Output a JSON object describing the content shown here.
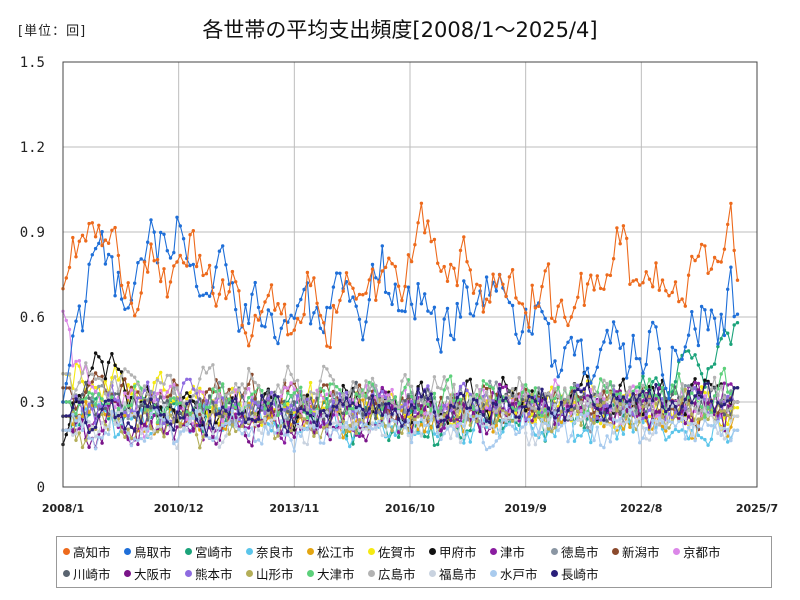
{
  "chart_data": {
    "type": "line",
    "title": "各世帯の平均支出頻度[2008/1～2025/4]",
    "unit_label": "[単位：回]",
    "ylim": [
      0,
      1.5
    ],
    "yticks": [
      0,
      0.3,
      0.6,
      0.9,
      1.2,
      1.5
    ],
    "ytick_labels": [
      "0",
      "0.3",
      "0.6",
      "0.9",
      "1.2",
      "1.5"
    ],
    "xticks": [
      "2008/1",
      "2010/12",
      "2013/11",
      "2016/10",
      "2019/9",
      "2022/8",
      "2025/7"
    ],
    "x_range": [
      "2008/1",
      "2025/7"
    ],
    "n_months": 208,
    "grid": true,
    "legend_position": "bottom",
    "series": [
      {
        "name": "高知市",
        "color": "#ED6A1C",
        "base": 0.75,
        "amp": 0.12,
        "noise": 0.1,
        "anchors": [
          [
            0,
            0.7
          ],
          [
            8,
            1.0
          ],
          [
            20,
            0.75
          ],
          [
            40,
            0.78
          ],
          [
            60,
            0.6
          ],
          [
            80,
            0.62
          ],
          [
            100,
            0.65
          ],
          [
            110,
            0.9
          ],
          [
            130,
            0.7
          ],
          [
            150,
            0.6
          ],
          [
            160,
            0.65
          ],
          [
            170,
            0.85
          ],
          [
            185,
            0.68
          ],
          [
            195,
            0.8
          ],
          [
            205,
            0.94
          ],
          [
            207,
            0.73
          ]
        ]
      },
      {
        "name": "鳥取市",
        "color": "#1F6FD8",
        "base": 0.6,
        "amp": 0.12,
        "noise": 0.13,
        "anchors": [
          [
            0,
            0.3
          ],
          [
            8,
            0.82
          ],
          [
            20,
            0.7
          ],
          [
            28,
            1.02
          ],
          [
            40,
            0.8
          ],
          [
            55,
            0.7
          ],
          [
            70,
            0.6
          ],
          [
            90,
            0.6
          ],
          [
            100,
            0.8
          ],
          [
            120,
            0.55
          ],
          [
            130,
            0.8
          ],
          [
            140,
            0.55
          ],
          [
            150,
            0.45
          ],
          [
            170,
            0.45
          ],
          [
            190,
            0.45
          ],
          [
            200,
            0.55
          ],
          [
            207,
            0.61
          ]
        ]
      },
      {
        "name": "宮崎市",
        "color": "#1BA37A",
        "base": 0.27,
        "amp": 0.07,
        "noise": 0.06,
        "anchors": [
          [
            0,
            0.25
          ],
          [
            60,
            0.25
          ],
          [
            120,
            0.2
          ],
          [
            170,
            0.28
          ],
          [
            207,
            0.58
          ]
        ]
      },
      {
        "name": "奈良市",
        "color": "#5BC5EA",
        "base": 0.22,
        "amp": 0.06,
        "noise": 0.06,
        "anchors": [
          [
            0,
            0.25
          ],
          [
            207,
            0.2
          ]
        ]
      },
      {
        "name": "松江市",
        "color": "#E3A511",
        "base": 0.24,
        "amp": 0.06,
        "noise": 0.06,
        "anchors": [
          [
            0,
            0.25
          ],
          [
            207,
            0.25
          ]
        ]
      },
      {
        "name": "佐賀市",
        "color": "#F5EA12",
        "base": 0.27,
        "amp": 0.07,
        "noise": 0.07,
        "anchors": [
          [
            0,
            0.4
          ],
          [
            60,
            0.27
          ],
          [
            207,
            0.28
          ]
        ]
      },
      {
        "name": "甲府市",
        "color": "#111111",
        "base": 0.28,
        "amp": 0.07,
        "noise": 0.07,
        "anchors": [
          [
            0,
            0.15
          ],
          [
            10,
            0.5
          ],
          [
            30,
            0.25
          ],
          [
            120,
            0.3
          ],
          [
            207,
            0.35
          ]
        ]
      },
      {
        "name": "津市",
        "color": "#8A1DA0",
        "base": 0.22,
        "amp": 0.06,
        "noise": 0.06,
        "anchors": [
          [
            0,
            0.2
          ],
          [
            207,
            0.35
          ]
        ]
      },
      {
        "name": "徳島市",
        "color": "#8A96A3",
        "base": 0.27,
        "amp": 0.07,
        "noise": 0.06,
        "anchors": [
          [
            0,
            0.3
          ],
          [
            207,
            0.3
          ]
        ]
      },
      {
        "name": "新潟市",
        "color": "#8B4A2D",
        "base": 0.25,
        "amp": 0.06,
        "noise": 0.06,
        "anchors": [
          [
            0,
            0.35
          ],
          [
            207,
            0.3
          ]
        ]
      },
      {
        "name": "京都市",
        "color": "#DB87E8",
        "base": 0.26,
        "amp": 0.07,
        "noise": 0.06,
        "anchors": [
          [
            0,
            0.62
          ],
          [
            10,
            0.3
          ],
          [
            207,
            0.3
          ]
        ]
      },
      {
        "name": "川崎市",
        "color": "#5A6470",
        "base": 0.25,
        "amp": 0.06,
        "noise": 0.06,
        "anchors": [
          [
            0,
            0.3
          ],
          [
            207,
            0.3
          ]
        ]
      },
      {
        "name": "大阪市",
        "color": "#7A1489",
        "base": 0.22,
        "amp": 0.06,
        "noise": 0.06,
        "anchors": [
          [
            0,
            0.2
          ],
          [
            207,
            0.3
          ]
        ]
      },
      {
        "name": "熊本市",
        "color": "#8E6BE0",
        "base": 0.24,
        "amp": 0.06,
        "noise": 0.06,
        "anchors": [
          [
            0,
            0.3
          ],
          [
            207,
            0.3
          ]
        ]
      },
      {
        "name": "山形市",
        "color": "#B4AE58",
        "base": 0.24,
        "amp": 0.06,
        "noise": 0.06,
        "anchors": [
          [
            0,
            0.2
          ],
          [
            207,
            0.3
          ]
        ]
      },
      {
        "name": "大津市",
        "color": "#5CD07A",
        "base": 0.25,
        "amp": 0.07,
        "noise": 0.06,
        "anchors": [
          [
            0,
            0.3
          ],
          [
            207,
            0.35
          ]
        ]
      },
      {
        "name": "広島市",
        "color": "#B3B3B3",
        "base": 0.27,
        "amp": 0.07,
        "noise": 0.06,
        "anchors": [
          [
            0,
            0.4
          ],
          [
            207,
            0.3
          ]
        ]
      },
      {
        "name": "福島市",
        "color": "#C9D3E0",
        "base": 0.23,
        "amp": 0.06,
        "noise": 0.06,
        "anchors": [
          [
            0,
            0.2
          ],
          [
            207,
            0.25
          ]
        ]
      },
      {
        "name": "水戸市",
        "color": "#A9CBEE",
        "base": 0.22,
        "amp": 0.06,
        "noise": 0.06,
        "anchors": [
          [
            0,
            0.2
          ],
          [
            207,
            0.2
          ]
        ]
      },
      {
        "name": "長崎市",
        "color": "#2A1F7A",
        "base": 0.24,
        "amp": 0.06,
        "noise": 0.06,
        "anchors": [
          [
            0,
            0.25
          ],
          [
            207,
            0.35
          ]
        ]
      }
    ]
  }
}
